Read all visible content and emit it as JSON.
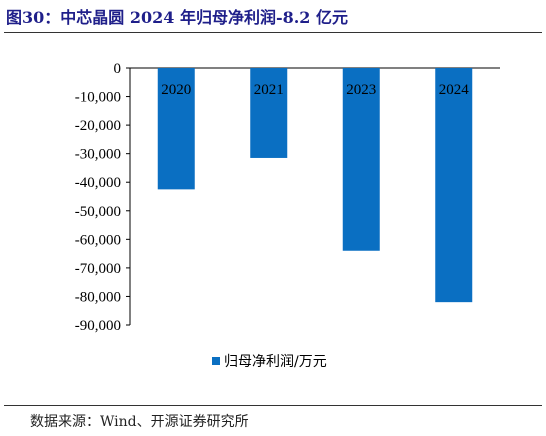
{
  "title": "图30：中芯晶圆 2024 年归母净利润-8.2 亿元",
  "source": "数据来源：Wind、开源证券研究所",
  "colors": {
    "bar": "#0a6fc2",
    "title": "#1f1f8a",
    "axis": "#000000"
  },
  "chart_data": {
    "type": "bar",
    "categories": [
      "2020",
      "2021",
      "2023",
      "2024"
    ],
    "series": [
      {
        "name": "归母净利润/万元",
        "values": [
          -42500,
          -31500,
          -64000,
          -82000
        ]
      }
    ],
    "ylim": [
      -90000,
      0
    ],
    "ytick_labels": [
      "0",
      "-10,000",
      "-20,000",
      "-30,000",
      "-40,000",
      "-50,000",
      "-60,000",
      "-70,000",
      "-80,000",
      "-90,000"
    ],
    "legend_position": "bottom",
    "grid": false,
    "xlabel": "",
    "ylabel": ""
  }
}
